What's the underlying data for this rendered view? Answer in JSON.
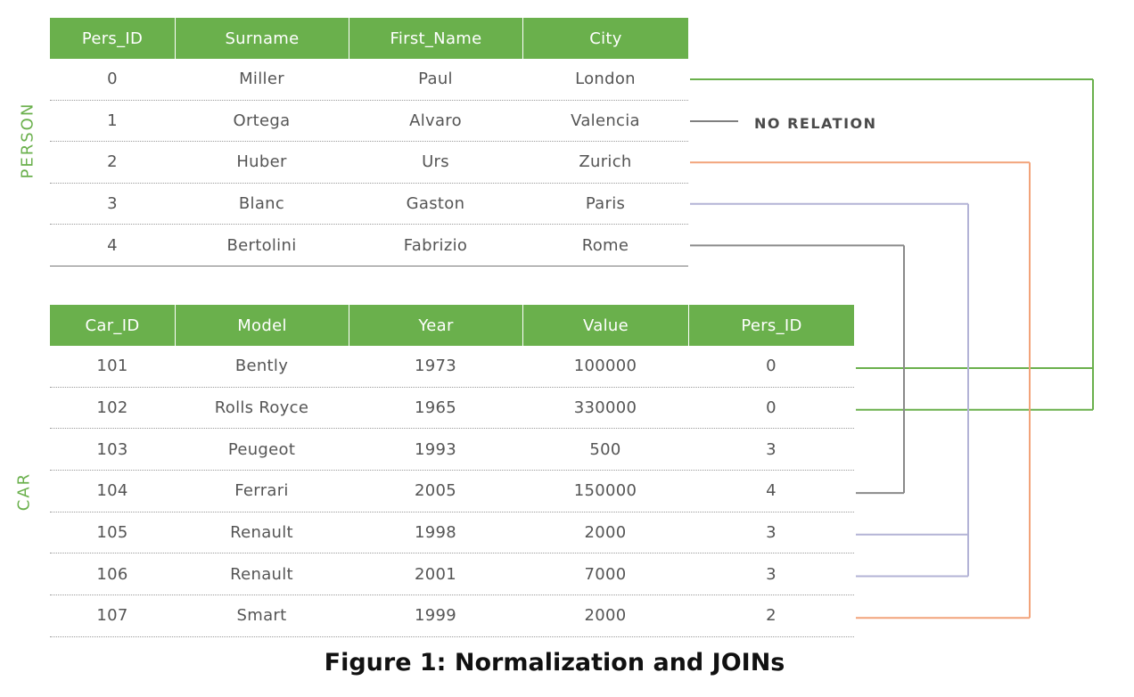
{
  "person_table": {
    "side_label": "PERSON",
    "columns": [
      "Pers_ID",
      "Surname",
      "First_Name",
      "City"
    ],
    "rows": [
      [
        "0",
        "Miller",
        "Paul",
        "London"
      ],
      [
        "1",
        "Ortega",
        "Alvaro",
        "Valencia"
      ],
      [
        "2",
        "Huber",
        "Urs",
        "Zurich"
      ],
      [
        "3",
        "Blanc",
        "Gaston",
        "Paris"
      ],
      [
        "4",
        "Bertolini",
        "Fabrizio",
        "Rome"
      ]
    ]
  },
  "car_table": {
    "side_label": "CAR",
    "columns": [
      "Car_ID",
      "Model",
      "Year",
      "Value",
      "Pers_ID"
    ],
    "rows": [
      [
        "101",
        "Bently",
        "1973",
        "100000",
        "0"
      ],
      [
        "102",
        "Rolls Royce",
        "1965",
        "330000",
        "0"
      ],
      [
        "103",
        "Peugeot",
        "1993",
        "500",
        "3"
      ],
      [
        "104",
        "Ferrari",
        "2005",
        "150000",
        "4"
      ],
      [
        "105",
        "Renault",
        "1998",
        "2000",
        "3"
      ],
      [
        "106",
        "Renault",
        "2001",
        "7000",
        "3"
      ],
      [
        "107",
        "Smart",
        "1999",
        "2000",
        "2"
      ]
    ]
  },
  "no_relation_label": "NO RELATION",
  "caption": "Figure 1: Normalization and JOINs",
  "relations": [
    {
      "person_row": 0,
      "car_rows": [
        0,
        1
      ],
      "color": "#6ab04c"
    },
    {
      "person_row": 2,
      "car_rows": [
        6
      ],
      "color": "#f2a37a"
    },
    {
      "person_row": 3,
      "car_rows": [
        4,
        5
      ],
      "color": "#b3b3d6"
    },
    {
      "person_row": 4,
      "car_rows": [
        3
      ],
      "color": "#8a8a8a"
    }
  ],
  "colors": {
    "header_green": "#6ab04c",
    "label_green": "#6ab04c",
    "no_relation_line": "#555555"
  }
}
